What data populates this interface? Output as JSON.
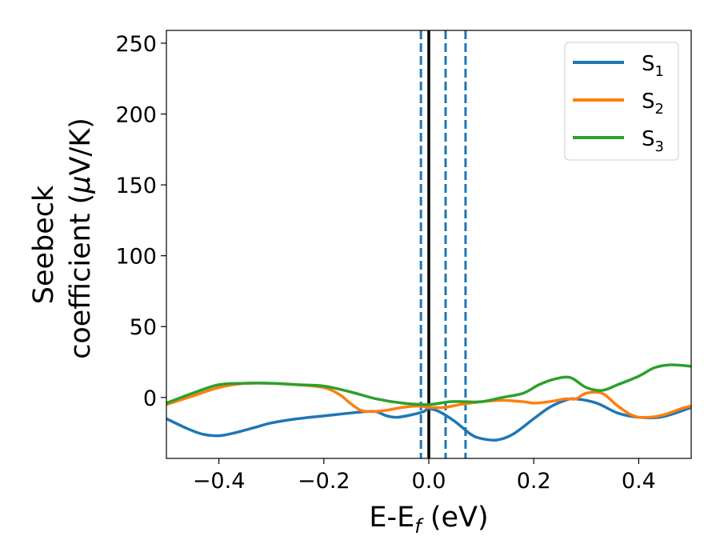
{
  "chart_data": {
    "type": "line",
    "xlabel": "E-E",
    "xlabel_sub": "f",
    "xlabel_unit": " (eV)",
    "ylabel_line1": "Seebeck",
    "ylabel_line2_prefix": "coefficient  (",
    "ylabel_mu": "μ",
    "ylabel_line2_suffix": "V/K)",
    "xlim": [
      -0.5,
      0.5
    ],
    "ylim": [
      -43,
      259
    ],
    "xticks": [
      -0.4,
      -0.2,
      0.0,
      0.2,
      0.4
    ],
    "xtick_labels": [
      "−0.4",
      "−0.2",
      "0.0",
      "0.2",
      "0.4"
    ],
    "yticks": [
      0,
      50,
      100,
      150,
      200,
      250
    ],
    "ytick_labels": [
      "0",
      "50",
      "100",
      "150",
      "200",
      "250"
    ],
    "legend_position": "top-right",
    "vlines": [
      {
        "x": 0.0,
        "style": "solid",
        "color": "#000000"
      },
      {
        "x": -0.015,
        "style": "dashed",
        "color": "#1f77b4"
      },
      {
        "x": 0.032,
        "style": "dashed",
        "color": "#1f77b4"
      },
      {
        "x": 0.07,
        "style": "dashed",
        "color": "#1f77b4"
      }
    ],
    "series": [
      {
        "name": "S",
        "sub": "1",
        "color": "#1f77b4",
        "x": [
          -0.5,
          -0.46,
          -0.43,
          -0.4,
          -0.37,
          -0.33,
          -0.3,
          -0.25,
          -0.2,
          -0.15,
          -0.12,
          -0.1,
          -0.08,
          -0.06,
          -0.03,
          -0.01,
          0.0,
          0.02,
          0.05,
          0.08,
          0.1,
          0.13,
          0.16,
          0.2,
          0.23,
          0.26,
          0.28,
          0.32,
          0.36,
          0.4,
          0.44,
          0.47,
          0.5
        ],
        "y": [
          -15,
          -22,
          -26,
          -27,
          -25,
          -21,
          -18,
          -15,
          -13,
          -11,
          -10,
          -10,
          -13,
          -14,
          -12,
          -10,
          -8,
          -10,
          -17,
          -26,
          -29,
          -30,
          -26,
          -15,
          -7,
          -2,
          -1,
          -4,
          -11,
          -14,
          -14,
          -11,
          -7
        ]
      },
      {
        "name": "S",
        "sub": "2",
        "color": "#ff7f0e",
        "x": [
          -0.5,
          -0.45,
          -0.4,
          -0.35,
          -0.3,
          -0.25,
          -0.2,
          -0.17,
          -0.15,
          -0.13,
          -0.11,
          -0.08,
          -0.05,
          -0.02,
          0.0,
          0.03,
          0.06,
          0.1,
          0.14,
          0.18,
          0.2,
          0.23,
          0.26,
          0.28,
          0.3,
          0.33,
          0.36,
          0.39,
          0.42,
          0.45,
          0.48,
          0.5
        ],
        "y": [
          -5,
          1,
          7,
          10,
          10,
          9,
          7,
          2,
          -4,
          -9,
          -10,
          -9,
          -7,
          -6,
          -7,
          -7,
          -5,
          -3,
          -2,
          -3,
          -4,
          -3,
          -1,
          -1,
          3,
          3,
          -6,
          -13,
          -14,
          -12,
          -8,
          -6
        ]
      },
      {
        "name": "S",
        "sub": "3",
        "color": "#2ca02c",
        "x": [
          -0.5,
          -0.45,
          -0.4,
          -0.35,
          -0.3,
          -0.25,
          -0.2,
          -0.15,
          -0.1,
          -0.05,
          0.0,
          0.04,
          0.07,
          0.1,
          0.14,
          0.18,
          0.21,
          0.24,
          0.27,
          0.3,
          0.33,
          0.36,
          0.4,
          0.43,
          0.46,
          0.5
        ],
        "y": [
          -4,
          3,
          9,
          10,
          10,
          9,
          8,
          4,
          -1,
          -4,
          -5,
          -3,
          -3,
          -3,
          0,
          3,
          9,
          13,
          14,
          7,
          5,
          9,
          15,
          21,
          23,
          22
        ]
      }
    ]
  }
}
